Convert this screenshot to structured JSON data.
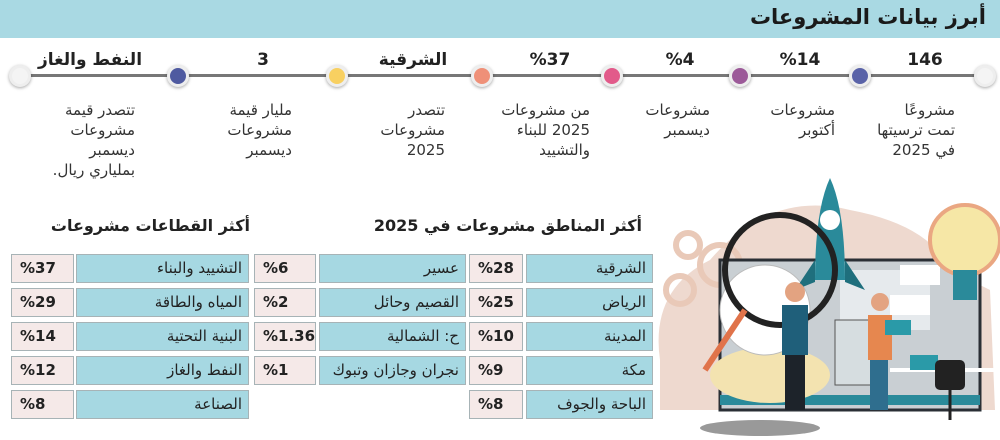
{
  "header": {
    "title": "أبرز بيانات المشروعات"
  },
  "timeline": {
    "items": [
      {
        "value": "146",
        "description": "مشروعًا\nتمت ترسيتها\nفي  2025",
        "dot_color": "#5a63a8"
      },
      {
        "value": "%14",
        "description": "مشروعات\nأكتوبر",
        "dot_color": "#9c5a99"
      },
      {
        "value": "%4",
        "description": "مشروعات\nديسمبر",
        "dot_color": "#e25a8a"
      },
      {
        "value": "%37",
        "description": "من مشروعات\n2025 للبناء\nوالتشييد",
        "dot_color": "#ef9078"
      },
      {
        "value": "الشرقية",
        "description": "تتصدر\nمشروعات\n2025",
        "dot_color": "#f8d061"
      },
      {
        "value": "3",
        "description": "مليار قيمة\nمشروعات\nديسمبر",
        "dot_color": "#4f5aa0"
      },
      {
        "value": "النفط والغاز",
        "description": "تتصدر قيمة\nمشروعات\nديسمبر\nبملياري ريال."
      }
    ]
  },
  "regions": {
    "title": "أكثر المناطق مشروعات في 2025",
    "rows": [
      {
        "label": "الشرقية",
        "value": "%28"
      },
      {
        "label": "الرياض",
        "value": "%25"
      },
      {
        "label": "المدينة",
        "value": "%10"
      },
      {
        "label": "مكة",
        "value": "%9"
      },
      {
        "label": "الباحة والجوف",
        "value": "%8"
      },
      {
        "label": "عسير",
        "value": "%6"
      },
      {
        "label": "القصيم وحائل",
        "value": "%2"
      },
      {
        "label": "ح: الشمالية",
        "value": "%1.36"
      },
      {
        "label": "نجران وجازان وتبوك",
        "value": "%1"
      }
    ]
  },
  "sectors": {
    "title": "أكثر القطاعات مشروعات",
    "rows": [
      {
        "label": "التشييد والبناء",
        "value": "%37"
      },
      {
        "label": "المياه والطاقة",
        "value": "%29"
      },
      {
        "label": "البنية التحتية",
        "value": "%14"
      },
      {
        "label": "النفط والغاز",
        "value": "%12"
      },
      {
        "label": "الصناعة",
        "value": "%8"
      }
    ]
  },
  "colors": {
    "header_bg": "#a9d9e3",
    "label_cell": "#a6d8e2",
    "value_cell": "#f5e9e8"
  }
}
